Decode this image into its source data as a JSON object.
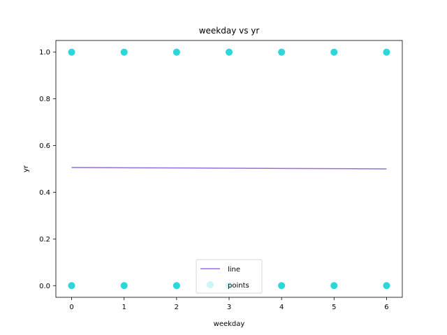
{
  "chart_data": {
    "type": "scatter",
    "title": "weekday vs yr",
    "xlabel": "weekday",
    "ylabel": "yr",
    "xlim": [
      -0.3,
      6.3
    ],
    "ylim": [
      -0.05,
      1.05
    ],
    "xticks": [
      0,
      1,
      2,
      3,
      4,
      5,
      6
    ],
    "yticks": [
      0.0,
      0.2,
      0.4,
      0.6,
      0.8,
      1.0
    ],
    "xtick_labels": [
      "0",
      "1",
      "2",
      "3",
      "4",
      "5",
      "6"
    ],
    "ytick_labels": [
      "0.0",
      "0.2",
      "0.4",
      "0.6",
      "0.8",
      "1.0"
    ],
    "grid": false,
    "legend_position": "lower center",
    "series": [
      {
        "name": "line",
        "kind": "line",
        "color": "#9370db",
        "x": [
          0,
          1,
          2,
          3,
          4,
          5,
          6
        ],
        "y": [
          0.506,
          0.505,
          0.504,
          0.503,
          0.502,
          0.501,
          0.5
        ]
      },
      {
        "name": "points",
        "kind": "scatter",
        "color": "#00ced1",
        "x": [
          0,
          1,
          2,
          3,
          4,
          5,
          6,
          0,
          1,
          2,
          3,
          4,
          5,
          6
        ],
        "y": [
          1,
          1,
          1,
          1,
          1,
          1,
          1,
          0,
          0,
          0,
          0,
          0,
          0,
          0
        ]
      }
    ]
  }
}
